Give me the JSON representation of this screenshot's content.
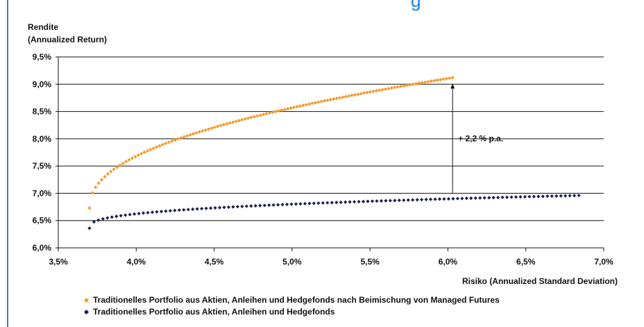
{
  "page": {
    "title_fragment": "g"
  },
  "chart_data": {
    "type": "scatter",
    "ylabel_line1": "Rendite",
    "ylabel_line2": "(Annualized Return)",
    "xlabel": "Risiko (Annualized Standard Deviation)",
    "xlim": [
      0.035,
      0.07
    ],
    "ylim": [
      0.06,
      0.095
    ],
    "xticks": [
      0.035,
      0.04,
      0.045,
      0.05,
      0.055,
      0.06,
      0.065,
      0.07
    ],
    "xtick_labels": [
      "3,5%",
      "4,0%",
      "4,5%",
      "5,0%",
      "5,5%",
      "6,0%",
      "6,5%",
      "7,0%"
    ],
    "yticks": [
      0.06,
      0.065,
      0.07,
      0.075,
      0.08,
      0.085,
      0.09,
      0.095
    ],
    "ytick_labels": [
      "6,0%",
      "6,5%",
      "7,0%",
      "7,5%",
      "8,0%",
      "8,5%",
      "9,0%",
      "9,5%"
    ],
    "grid": "horizontal",
    "annotation": {
      "text": "+ 2,2 % p.a.",
      "x": 0.0603,
      "y_from": 0.07,
      "y_to": 0.0901
    },
    "series": [
      {
        "name": "Traditionelles Portfolio aus Aktien, Anleihen und Hedgefonds nach Beimischung von Managed Futures",
        "color": "#f39a2d",
        "x_start": 0.037,
        "x_end": 0.0603,
        "y_start": 0.0673,
        "y_end": 0.0912,
        "curve_exponent": 0.45,
        "points": 120
      },
      {
        "name": "Traditionelles Portfolio aus Aktien, Anleihen und Hedgefonds",
        "color": "#1b1f4d",
        "x_start": 0.037,
        "x_end": 0.0684,
        "y_start": 0.0636,
        "y_end": 0.0696,
        "curve_exponent": 0.35,
        "points": 110
      }
    ]
  }
}
